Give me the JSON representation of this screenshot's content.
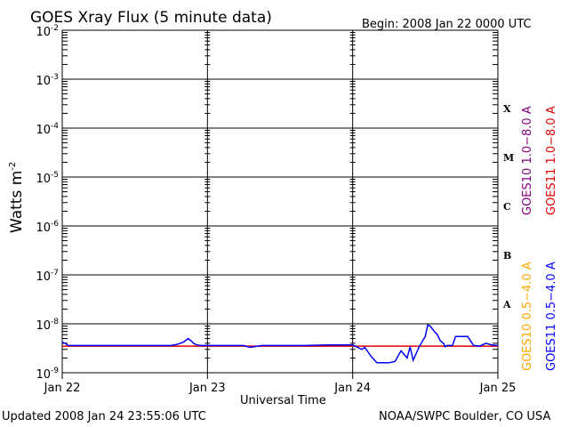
{
  "header": {
    "title": "GOES Xray Flux (5 minute data)",
    "begin": "Begin:  2008 Jan 22 0000 UTC"
  },
  "footer": {
    "updated": "Updated 2008 Jan 24 23:55:06 UTC",
    "credit": "NOAA/SWPC Boulder, CO USA"
  },
  "chart_data": {
    "type": "line",
    "title": "GOES Xray Flux (5 minute data)",
    "xlabel": "Universal Time",
    "ylabel": "Watts m",
    "ylabel_sup": "-2",
    "y_scale": "log",
    "ylim": [
      1e-09,
      0.01
    ],
    "xlim": [
      0,
      72
    ],
    "x_unit": "hours since 2008 Jan 22 0000 UTC",
    "x_ticks": [
      {
        "label": "Jan 22",
        "x": 0
      },
      {
        "label": "Jan 23",
        "x": 24
      },
      {
        "label": "Jan 24",
        "x": 48
      },
      {
        "label": "Jan 25",
        "x": 72
      }
    ],
    "y_ticks": [
      {
        "base": "10",
        "exp": "-2",
        "value": 0.01
      },
      {
        "base": "10",
        "exp": "-3",
        "value": 0.001
      },
      {
        "base": "10",
        "exp": "-4",
        "value": 0.0001
      },
      {
        "base": "10",
        "exp": "-5",
        "value": 1e-05
      },
      {
        "base": "10",
        "exp": "-6",
        "value": 1e-06
      },
      {
        "base": "10",
        "exp": "-7",
        "value": 1e-07
      },
      {
        "base": "10",
        "exp": "-8",
        "value": 1e-08
      },
      {
        "base": "10",
        "exp": "-9",
        "value": 1e-09
      }
    ],
    "flare_classes": [
      {
        "label": "X",
        "value": 0.00025
      },
      {
        "label": "M",
        "value": 2.5e-05
      },
      {
        "label": "C",
        "value": 2.5e-06
      },
      {
        "label": "B",
        "value": 2.5e-07
      },
      {
        "label": "A",
        "value": 2.5e-08
      }
    ],
    "legend": [
      {
        "text": "GOES10 1.0−8.0 A",
        "color": "#800080"
      },
      {
        "text": "GOES11 1.0−8.0 A",
        "color": "#e00000"
      },
      {
        "text": "GOES10 0.5−4.0 A",
        "color": "#ffa500"
      },
      {
        "text": "GOES11 0.5−4.0 A",
        "color": "#0000ff"
      }
    ],
    "series": [
      {
        "name": "GOES11 1.0−8.0 A",
        "color": "#e00000",
        "x": [
          0,
          72
        ],
        "y": [
          3.5e-09,
          3.5e-09
        ]
      },
      {
        "name": "GOES11 0.5−4.0 A",
        "color": "#0000ff",
        "x": [
          0,
          0.5,
          1,
          5,
          10,
          15,
          18,
          19,
          20,
          20.8,
          21.3,
          21.8,
          22.3,
          23,
          24,
          30,
          31,
          33,
          40,
          44,
          48,
          49.5,
          50,
          51,
          52,
          54,
          55,
          56,
          57,
          57.5,
          58,
          59,
          60,
          60.4,
          60.8,
          61.5,
          62,
          62.5,
          63,
          63.3,
          63.6,
          64.5,
          65,
          66,
          67,
          68,
          69,
          70,
          71,
          72
        ],
        "y": [
          4.2e-09,
          4e-09,
          3.6e-09,
          3.6e-09,
          3.6e-09,
          3.6e-09,
          3.6e-09,
          3.8e-09,
          4.2e-09,
          5e-09,
          4.5e-09,
          3.9e-09,
          3.7e-09,
          3.6e-09,
          3.6e-09,
          3.6e-09,
          3.3e-09,
          3.6e-09,
          3.6e-09,
          3.7e-09,
          3.7e-09,
          3e-09,
          3.3e-09,
          2.2e-09,
          1.6e-09,
          1.6e-09,
          1.7e-09,
          2.8e-09,
          2e-09,
          3.4e-09,
          1.8e-09,
          3.4e-09,
          5.5e-09,
          9.5e-09,
          9e-09,
          7e-09,
          6e-09,
          4.5e-09,
          4e-09,
          3.4e-09,
          3.6e-09,
          3.6e-09,
          5.5e-09,
          5.5e-09,
          5.5e-09,
          3.6e-09,
          3.5e-09,
          4e-09,
          3.7e-09,
          3.6e-09
        ]
      }
    ]
  }
}
